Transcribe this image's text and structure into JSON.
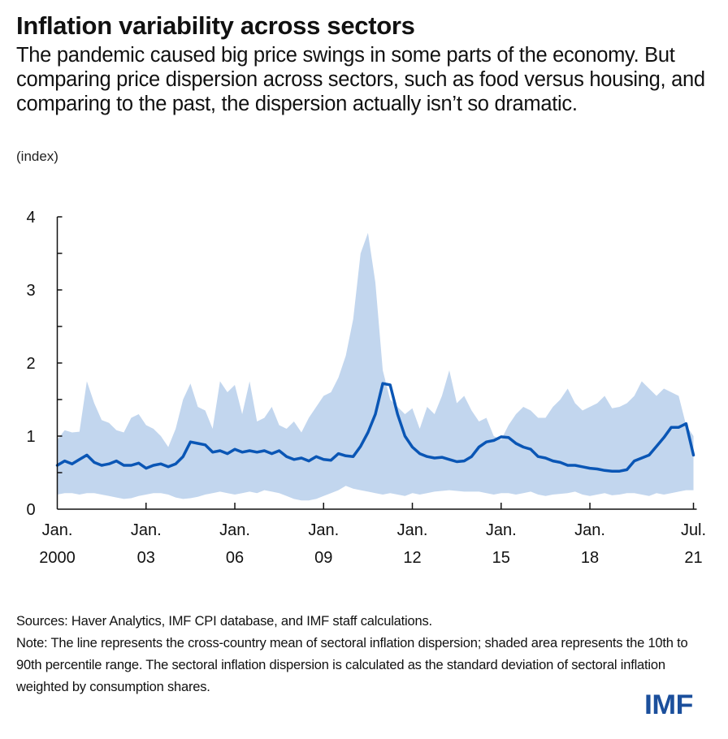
{
  "header": {
    "title": "Inflation variability across sectors",
    "subtitle": "The pandemic caused big price swings in some parts of the economy. But comparing price dispersion across sectors, such as food versus housing, and comparing to the past, the dispersion actually isn’t so dramatic.",
    "unit": "(index)"
  },
  "footer": {
    "sources": "Sources: Haver Analytics, IMF CPI database, and IMF staff calculations.",
    "note": "Note: The line represents the cross-country mean of sectoral inflation dispersion; shaded area represents the 10th to 90th percentile range. The sectoral inflation dispersion is calculated as the standard deviation of sectoral inflation weighted by consumption shares."
  },
  "logo": {
    "text": "IMF",
    "color": "#1b4f9c"
  },
  "colors": {
    "line": "#0a56b5",
    "band": "#c2d6ee",
    "axis": "#111111"
  },
  "chart_data": {
    "type": "line",
    "title": "Inflation variability across sectors",
    "ylabel": "(index)",
    "xlabel": "",
    "ylim": [
      0,
      4
    ],
    "yticks_major": [
      0,
      1,
      2,
      3,
      4
    ],
    "yticks_minor_step": 0.5,
    "xlim": [
      2000.0,
      2021.5
    ],
    "xticks": [
      {
        "x": 2000.0,
        "label1": "Jan.",
        "label2": "2000"
      },
      {
        "x": 2003.0,
        "label1": "Jan.",
        "label2": "03"
      },
      {
        "x": 2006.0,
        "label1": "Jan.",
        "label2": "06"
      },
      {
        "x": 2009.0,
        "label1": "Jan.",
        "label2": "09"
      },
      {
        "x": 2012.0,
        "label1": "Jan.",
        "label2": "12"
      },
      {
        "x": 2015.0,
        "label1": "Jan.",
        "label2": "15"
      },
      {
        "x": 2018.0,
        "label1": "Jan.",
        "label2": "18"
      },
      {
        "x": 2021.5,
        "label1": "Jul.",
        "label2": "21"
      }
    ],
    "grid": false,
    "legend": "none",
    "x": [
      2000.0,
      2000.25,
      2000.5,
      2000.75,
      2001.0,
      2001.25,
      2001.5,
      2001.75,
      2002.0,
      2002.25,
      2002.5,
      2002.75,
      2003.0,
      2003.25,
      2003.5,
      2003.75,
      2004.0,
      2004.25,
      2004.5,
      2004.75,
      2005.0,
      2005.25,
      2005.5,
      2005.75,
      2006.0,
      2006.25,
      2006.5,
      2006.75,
      2007.0,
      2007.25,
      2007.5,
      2007.75,
      2008.0,
      2008.25,
      2008.5,
      2008.75,
      2009.0,
      2009.25,
      2009.5,
      2009.75,
      2010.0,
      2010.25,
      2010.5,
      2010.75,
      2011.0,
      2011.25,
      2011.5,
      2011.75,
      2012.0,
      2012.25,
      2012.5,
      2012.75,
      2013.0,
      2013.25,
      2013.5,
      2013.75,
      2014.0,
      2014.25,
      2014.5,
      2014.75,
      2015.0,
      2015.25,
      2015.5,
      2015.75,
      2016.0,
      2016.25,
      2016.5,
      2016.75,
      2017.0,
      2017.25,
      2017.5,
      2017.75,
      2018.0,
      2018.25,
      2018.5,
      2018.75,
      2019.0,
      2019.25,
      2019.5,
      2019.75,
      2020.0,
      2020.25,
      2020.5,
      2020.75,
      2021.0,
      2021.25,
      2021.5
    ],
    "series": [
      {
        "name": "Cross-country mean",
        "kind": "line",
        "values": [
          0.6,
          0.66,
          0.62,
          0.68,
          0.74,
          0.64,
          0.6,
          0.62,
          0.66,
          0.6,
          0.6,
          0.63,
          0.56,
          0.6,
          0.62,
          0.58,
          0.62,
          0.72,
          0.92,
          0.9,
          0.88,
          0.78,
          0.8,
          0.76,
          0.82,
          0.78,
          0.8,
          0.78,
          0.8,
          0.76,
          0.8,
          0.72,
          0.68,
          0.7,
          0.66,
          0.72,
          0.68,
          0.67,
          0.76,
          0.73,
          0.72,
          0.86,
          1.05,
          1.3,
          1.72,
          1.7,
          1.3,
          1.0,
          0.85,
          0.76,
          0.72,
          0.7,
          0.71,
          0.68,
          0.65,
          0.66,
          0.72,
          0.85,
          0.92,
          0.94,
          0.99,
          0.98,
          0.9,
          0.85,
          0.82,
          0.72,
          0.7,
          0.66,
          0.64,
          0.6,
          0.6,
          0.58,
          0.56,
          0.55,
          0.53,
          0.52,
          0.52,
          0.54,
          0.66,
          0.7,
          0.74,
          0.86,
          0.98,
          1.12,
          1.12,
          1.17,
          0.74
        ],
        "color": "#0a56b5"
      },
      {
        "name": "90th percentile",
        "kind": "band_upper",
        "values": [
          0.95,
          1.08,
          1.05,
          1.06,
          1.75,
          1.45,
          1.22,
          1.18,
          1.08,
          1.05,
          1.25,
          1.3,
          1.15,
          1.1,
          1.0,
          0.85,
          1.1,
          1.5,
          1.72,
          1.4,
          1.35,
          1.1,
          1.75,
          1.6,
          1.7,
          1.3,
          1.75,
          1.2,
          1.25,
          1.4,
          1.15,
          1.1,
          1.2,
          1.05,
          1.25,
          1.4,
          1.55,
          1.6,
          1.8,
          2.1,
          2.6,
          3.5,
          3.78,
          3.1,
          1.9,
          1.5,
          1.4,
          1.3,
          1.38,
          1.1,
          1.4,
          1.3,
          1.55,
          1.9,
          1.45,
          1.55,
          1.35,
          1.2,
          1.25,
          1.0,
          0.95,
          1.15,
          1.3,
          1.4,
          1.35,
          1.25,
          1.25,
          1.4,
          1.5,
          1.65,
          1.45,
          1.35,
          1.4,
          1.45,
          1.55,
          1.38,
          1.4,
          1.45,
          1.55,
          1.75,
          1.65,
          1.55,
          1.65,
          1.6,
          1.55,
          1.15,
          1.0
        ],
        "color": "#c2d6ee"
      },
      {
        "name": "10th percentile",
        "kind": "band_lower",
        "values": [
          0.2,
          0.22,
          0.22,
          0.2,
          0.22,
          0.22,
          0.2,
          0.18,
          0.16,
          0.14,
          0.15,
          0.18,
          0.2,
          0.22,
          0.22,
          0.2,
          0.16,
          0.14,
          0.15,
          0.17,
          0.2,
          0.22,
          0.24,
          0.22,
          0.2,
          0.22,
          0.24,
          0.22,
          0.26,
          0.24,
          0.22,
          0.18,
          0.14,
          0.12,
          0.12,
          0.14,
          0.18,
          0.22,
          0.26,
          0.32,
          0.28,
          0.26,
          0.24,
          0.22,
          0.2,
          0.22,
          0.2,
          0.18,
          0.22,
          0.2,
          0.22,
          0.24,
          0.25,
          0.26,
          0.25,
          0.24,
          0.24,
          0.24,
          0.22,
          0.2,
          0.22,
          0.22,
          0.2,
          0.22,
          0.24,
          0.2,
          0.18,
          0.2,
          0.21,
          0.22,
          0.24,
          0.2,
          0.18,
          0.2,
          0.22,
          0.19,
          0.2,
          0.22,
          0.22,
          0.2,
          0.18,
          0.22,
          0.2,
          0.22,
          0.24,
          0.26,
          0.26
        ],
        "color": "#c2d6ee"
      }
    ]
  }
}
